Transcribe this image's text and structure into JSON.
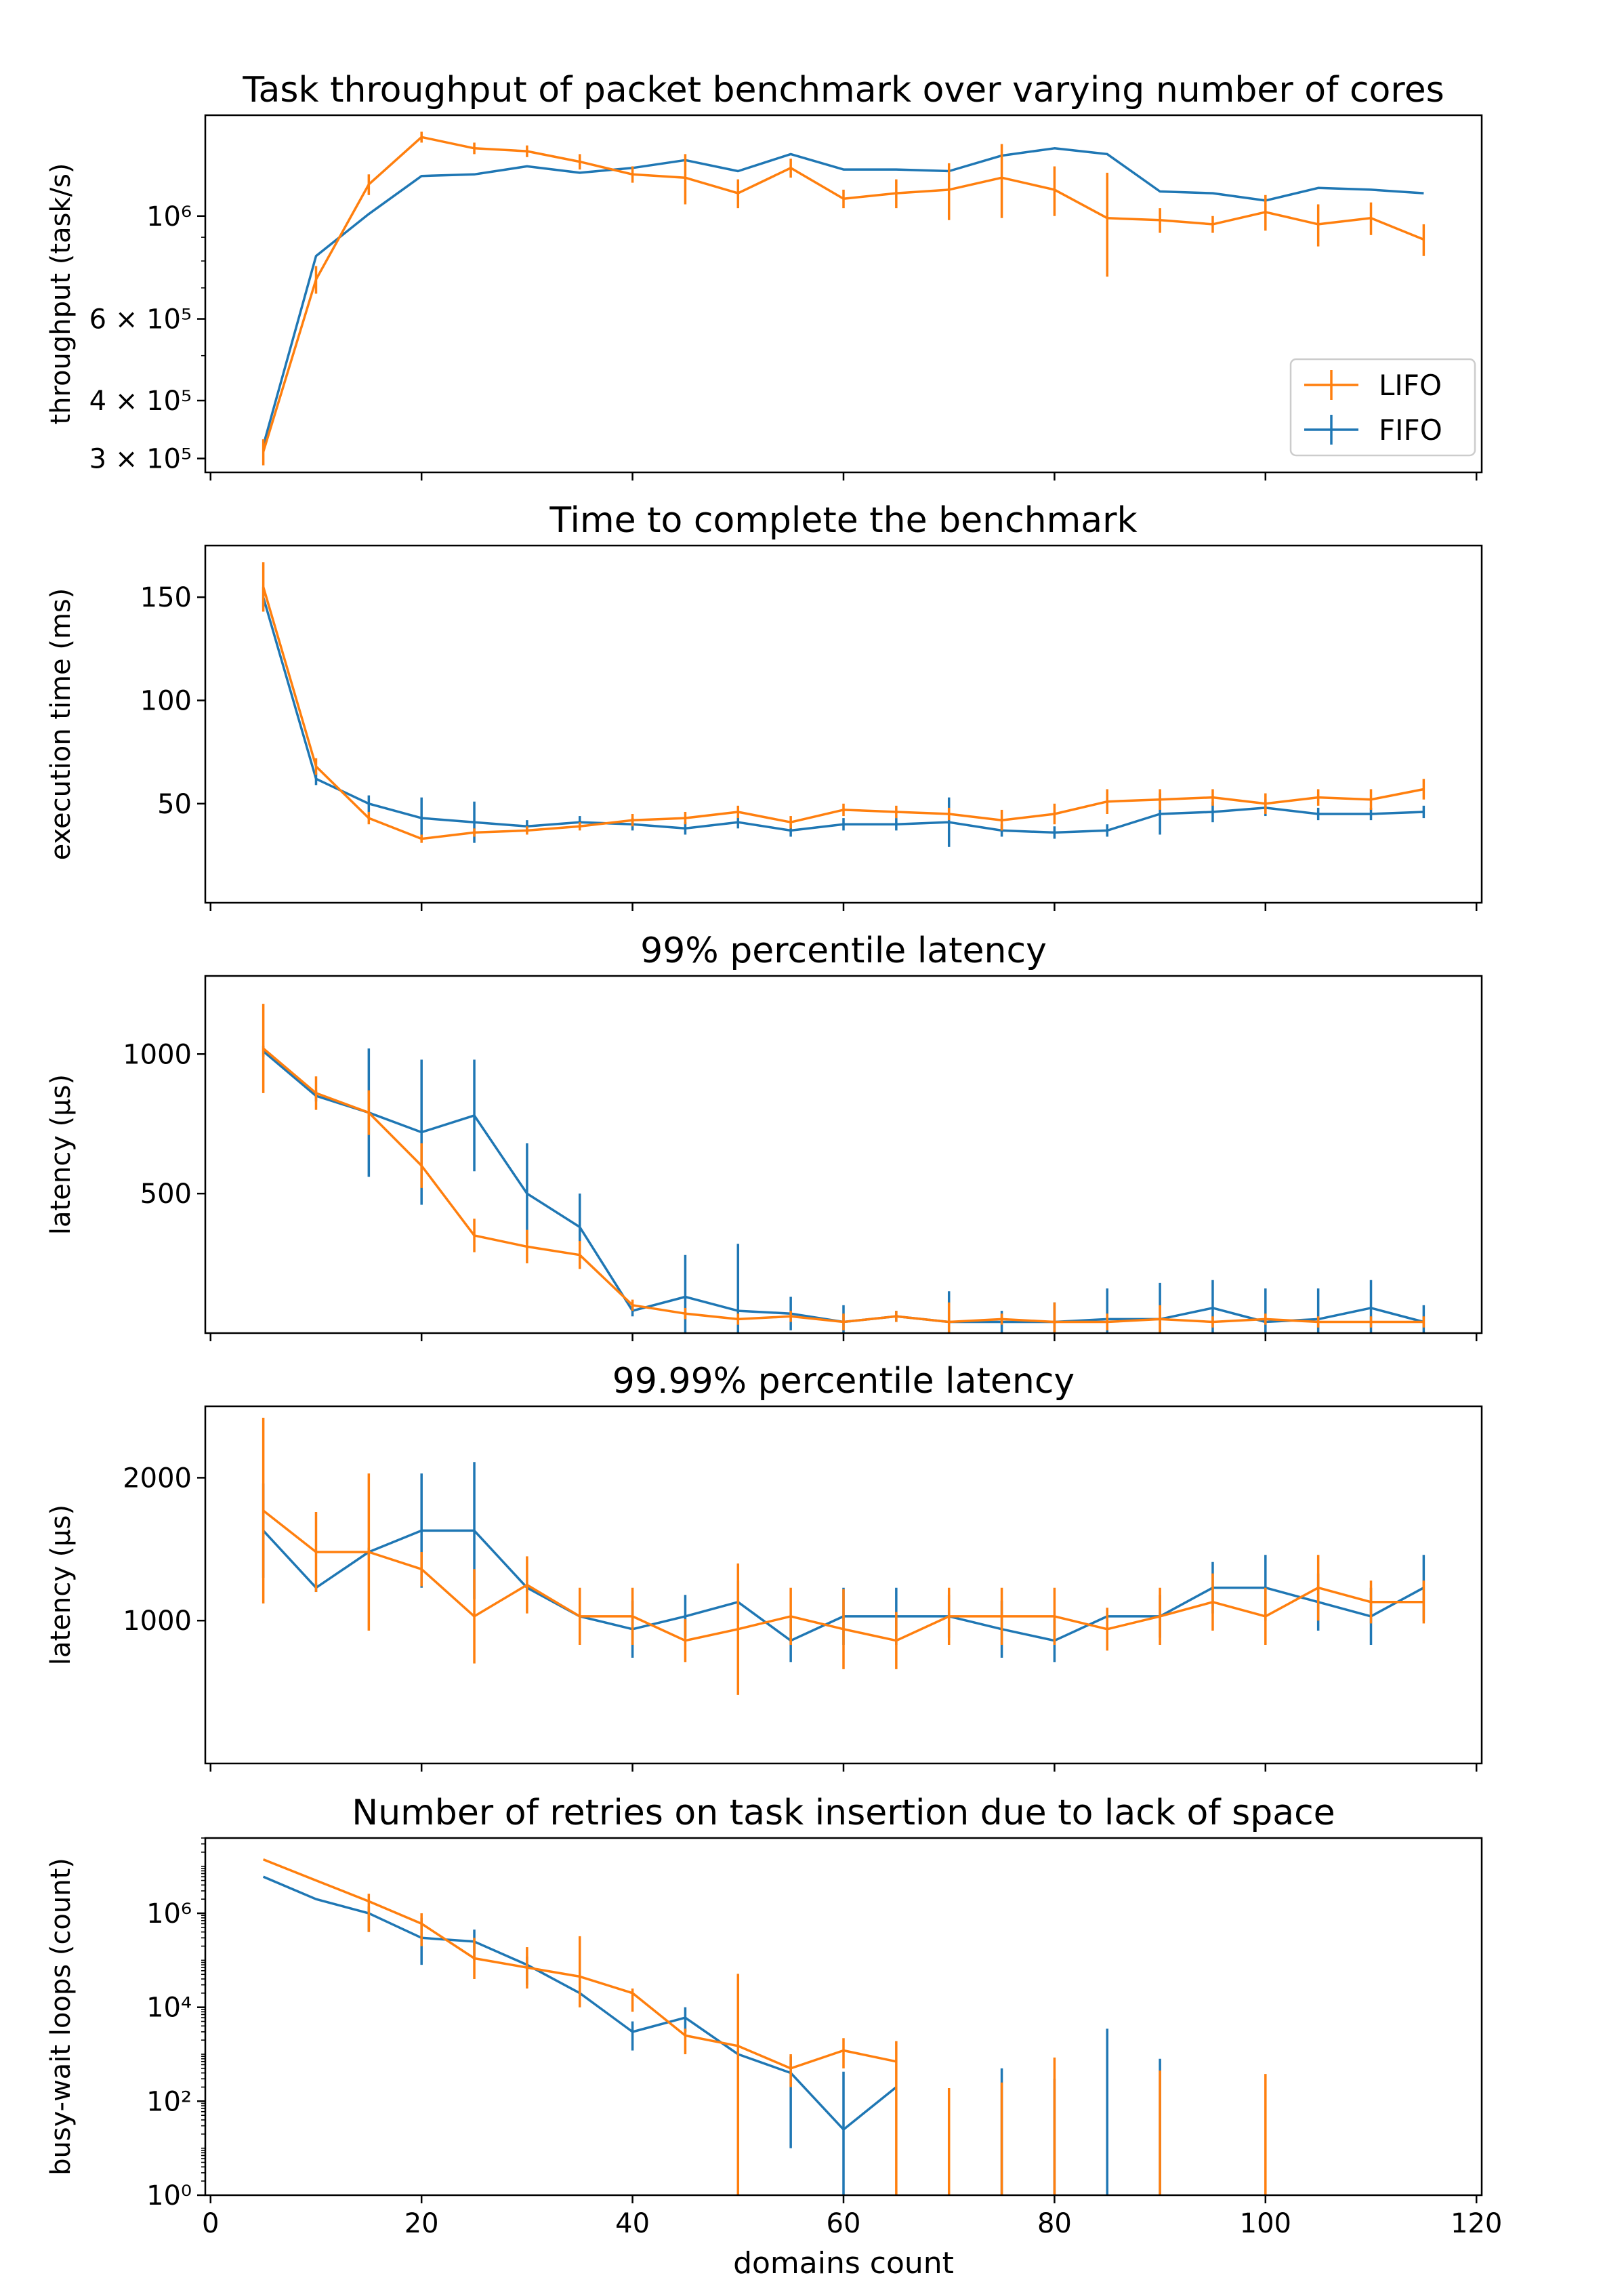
{
  "figure": {
    "xlabel": "domains count",
    "x_ticks": [
      0,
      20,
      40,
      60,
      80,
      100,
      120
    ],
    "colors": {
      "LIFO": "#ff7f0e",
      "FIFO": "#1f77b4"
    }
  },
  "chart_data": [
    {
      "type": "line",
      "title": "Task throughput of packet benchmark over varying number of cores",
      "ylabel": "throughput (task/s)",
      "yscale": "log",
      "xlim": [
        -0.5,
        120.5
      ],
      "ylim": [
        280000,
        1650000
      ],
      "y_ticks": [
        {
          "value": 300000,
          "label": "3 × 10⁵"
        },
        {
          "value": 400000,
          "label": "4 × 10⁵"
        },
        {
          "value": 600000,
          "label": "6 × 10⁵"
        },
        {
          "value": 1000000,
          "label": "10⁶"
        }
      ],
      "legend": {
        "position": "lower-right",
        "entries": [
          "LIFO",
          "FIFO"
        ]
      },
      "x": [
        5,
        10,
        15,
        20,
        25,
        30,
        35,
        40,
        45,
        50,
        55,
        60,
        65,
        70,
        75,
        80,
        85,
        90,
        95,
        100,
        105,
        110,
        115
      ],
      "series": [
        {
          "name": "LIFO",
          "values": [
            310000,
            730000,
            1170000,
            1480000,
            1400000,
            1380000,
            1310000,
            1230000,
            1210000,
            1120000,
            1270000,
            1090000,
            1120000,
            1140000,
            1210000,
            1140000,
            990000,
            980000,
            960000,
            1020000,
            960000,
            990000,
            890000
          ],
          "errors": [
            20000,
            50000,
            60000,
            40000,
            40000,
            40000,
            50000,
            50000,
            150000,
            80000,
            60000,
            50000,
            80000,
            160000,
            220000,
            140000,
            250000,
            60000,
            40000,
            90000,
            100000,
            80000,
            70000
          ]
        },
        {
          "name": "FIFO",
          "values": [
            320000,
            820000,
            1010000,
            1220000,
            1230000,
            1280000,
            1240000,
            1270000,
            1320000,
            1250000,
            1360000,
            1260000,
            1260000,
            1250000,
            1350000,
            1400000,
            1360000,
            1130000,
            1120000,
            1080000,
            1150000,
            1140000,
            1120000
          ]
        }
      ]
    },
    {
      "type": "line",
      "title": "Time to complete the benchmark",
      "ylabel": "execution time (ms)",
      "xlim": [
        -0.5,
        120.5
      ],
      "ylim": [
        2,
        175
      ],
      "y_ticks": [
        {
          "value": 50,
          "label": "50"
        },
        {
          "value": 100,
          "label": "100"
        },
        {
          "value": 150,
          "label": "150"
        }
      ],
      "x": [
        5,
        10,
        15,
        20,
        25,
        30,
        35,
        40,
        45,
        50,
        55,
        60,
        65,
        70,
        75,
        80,
        85,
        90,
        95,
        100,
        105,
        110,
        115
      ],
      "series": [
        {
          "name": "LIFO",
          "values": [
            155,
            68,
            43,
            33,
            36,
            37,
            39,
            42,
            43,
            46,
            41,
            47,
            46,
            45,
            42,
            45,
            51,
            52,
            53,
            50,
            53,
            52,
            57
          ],
          "errors": [
            12,
            4,
            3,
            2,
            2,
            2,
            2,
            3,
            3,
            3,
            3,
            3,
            3,
            3,
            5,
            5,
            6,
            5,
            4,
            5,
            4,
            5,
            5
          ]
        },
        {
          "name": "FIFO",
          "values": [
            150,
            62,
            50,
            43,
            41,
            39,
            41,
            40,
            38,
            41,
            37,
            40,
            40,
            41,
            37,
            36,
            37,
            45,
            46,
            48,
            45,
            45,
            46
          ],
          "errors": [
            5,
            3,
            4,
            10,
            10,
            3,
            3,
            3,
            3,
            3,
            3,
            3,
            3,
            12,
            3,
            3,
            3,
            10,
            5,
            4,
            3,
            3,
            3
          ]
        }
      ]
    },
    {
      "type": "line",
      "title": "99% percentile latency",
      "ylabel": "latency (µs)",
      "xlim": [
        -0.5,
        120.5
      ],
      "ylim": [
        0,
        1280
      ],
      "y_ticks": [
        {
          "value": 500,
          "label": "500"
        },
        {
          "value": 1000,
          "label": "1000"
        }
      ],
      "x": [
        5,
        10,
        15,
        20,
        25,
        30,
        35,
        40,
        45,
        50,
        55,
        60,
        65,
        70,
        75,
        80,
        85,
        90,
        95,
        100,
        105,
        110,
        115
      ],
      "series": [
        {
          "name": "LIFO",
          "values": [
            1020,
            860,
            790,
            600,
            350,
            310,
            280,
            100,
            70,
            50,
            60,
            40,
            60,
            40,
            50,
            40,
            40,
            50,
            40,
            50,
            40,
            40,
            40
          ],
          "errors": [
            160,
            60,
            80,
            80,
            60,
            60,
            50,
            20,
            20,
            20,
            20,
            30,
            20,
            70,
            20,
            70,
            30,
            50,
            20,
            20,
            20,
            20,
            20
          ]
        },
        {
          "name": "FIFO",
          "values": [
            1010,
            850,
            790,
            720,
            780,
            500,
            380,
            80,
            130,
            80,
            70,
            40,
            60,
            40,
            40,
            40,
            50,
            50,
            90,
            40,
            50,
            90,
            40
          ],
          "errors": [
            20,
            20,
            230,
            260,
            200,
            180,
            120,
            20,
            150,
            240,
            60,
            60,
            20,
            110,
            40,
            70,
            110,
            130,
            100,
            120,
            110,
            100,
            60
          ]
        }
      ]
    },
    {
      "type": "line",
      "title": "99.99% percentile latency",
      "ylabel": "latency (µs)",
      "xlim": [
        -0.5,
        120.5
      ],
      "ylim": [
        0,
        2500
      ],
      "y_ticks": [
        {
          "value": 1000,
          "label": "1000"
        },
        {
          "value": 2000,
          "label": "2000"
        }
      ],
      "x": [
        5,
        10,
        15,
        20,
        25,
        30,
        35,
        40,
        45,
        50,
        55,
        60,
        65,
        70,
        75,
        80,
        85,
        90,
        95,
        100,
        105,
        110,
        115
      ],
      "series": [
        {
          "name": "LIFO",
          "values": [
            1770,
            1480,
            1480,
            1360,
            1030,
            1250,
            1030,
            1030,
            860,
            940,
            1030,
            940,
            860,
            1030,
            1030,
            1030,
            940,
            1030,
            1130,
            1030,
            1230,
            1130,
            1130
          ],
          "errors": [
            650,
            280,
            550,
            120,
            330,
            200,
            200,
            200,
            150,
            460,
            200,
            280,
            200,
            200,
            200,
            200,
            150,
            200,
            200,
            200,
            230,
            150,
            150
          ]
        },
        {
          "name": "FIFO",
          "values": [
            1630,
            1230,
            1480,
            1630,
            1630,
            1230,
            1030,
            940,
            1030,
            1130,
            860,
            1030,
            1030,
            1030,
            940,
            860,
            1030,
            1030,
            1230,
            1230,
            1130,
            1030,
            1230
          ],
          "errors": [
            330,
            30,
            30,
            400,
            480,
            30,
            150,
            200,
            150,
            150,
            150,
            200,
            200,
            150,
            200,
            150,
            30,
            150,
            180,
            230,
            200,
            200,
            230
          ]
        }
      ]
    },
    {
      "type": "line",
      "title": "Number of retries on task insertion due to lack of space",
      "ylabel": "busy-wait loops (count)",
      "yscale": "log",
      "xlim": [
        -0.5,
        120.5
      ],
      "ylim": [
        1,
        40000000
      ],
      "y_ticks": [
        {
          "value": 1,
          "label": "10⁰"
        },
        {
          "value": 100,
          "label": "10²"
        },
        {
          "value": 10000,
          "label": "10⁴"
        },
        {
          "value": 1000000,
          "label": "10⁶"
        }
      ],
      "x": [
        5,
        10,
        15,
        20,
        25,
        30,
        35,
        40,
        45,
        50,
        55,
        60,
        65,
        70,
        75,
        80,
        85,
        90,
        95,
        100,
        105,
        110,
        115
      ],
      "series": [
        {
          "name": "LIFO",
          "values": [
            14000000,
            5000000,
            1800000,
            600000,
            110000,
            70000,
            45000,
            20000,
            2500,
            1500,
            500,
            1200,
            700,
            null,
            null,
            null,
            null,
            null,
            null,
            null,
            null,
            null,
            null
          ],
          "errors_low": [
            null,
            null,
            1400000,
            400000,
            70000,
            45000,
            35000,
            12000,
            1500,
            1500,
            300,
            700,
            700,
            190,
            250,
            850,
            null,
            450,
            null,
            380,
            null,
            null,
            null
          ],
          "errors_high": [
            null,
            null,
            800000,
            400000,
            190000,
            120000,
            280000,
            5000,
            1000,
            50000,
            500,
            1000,
            1200,
            0,
            0,
            0,
            null,
            0,
            null,
            0,
            null,
            null,
            null
          ]
        },
        {
          "name": "FIFO",
          "values": [
            6000000,
            2000000,
            1000000,
            300000,
            250000,
            80000,
            20000,
            3000,
            6000,
            1000,
            400,
            25,
            200,
            null,
            null,
            null,
            null,
            null,
            null,
            null,
            null,
            null,
            null
          ],
          "errors_low": [
            null,
            null,
            600000,
            220000,
            150000,
            50000,
            10000,
            1800,
            3000,
            0,
            390,
            25,
            null,
            null,
            500,
            300,
            3500,
            800,
            null,
            null,
            null,
            null,
            null
          ],
          "errors_high": [
            null,
            null,
            400000,
            500000,
            200000,
            40000,
            10000,
            2000,
            4000,
            0,
            500,
            400,
            null,
            null,
            0,
            0,
            0,
            0,
            null,
            null,
            null,
            null,
            null
          ]
        }
      ]
    }
  ]
}
